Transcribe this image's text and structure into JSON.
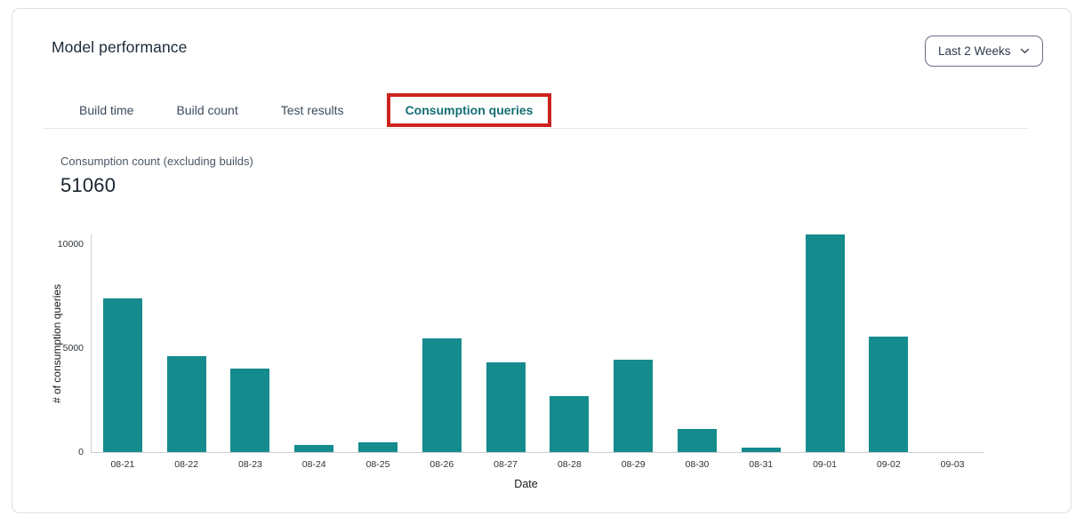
{
  "header": {
    "title": "Model performance",
    "date_range_selector": {
      "label": "Last 2 Weeks"
    }
  },
  "icons": {
    "date_range_chevron": "chevron-down"
  },
  "tabs": [
    {
      "label": "Build time",
      "active": false
    },
    {
      "label": "Build count",
      "active": false
    },
    {
      "label": "Test results",
      "active": false
    },
    {
      "label": "Consumption queries",
      "active": true,
      "highlighted": true
    }
  ],
  "annotation": {
    "type": "highlight-box",
    "color": "#cc231e",
    "target": "Consumption queries"
  },
  "metric": {
    "label": "Consumption count (excluding builds)",
    "value": "51060"
  },
  "chart_data": {
    "type": "bar",
    "title": "",
    "xlabel": "Date",
    "ylabel": "# of consumption queries",
    "categories": [
      "08-21",
      "08-22",
      "08-23",
      "08-24",
      "08-25",
      "08-26",
      "08-27",
      "08-28",
      "08-29",
      "08-30",
      "08-31",
      "09-01",
      "09-02",
      "09-03"
    ],
    "values": [
      7400,
      4600,
      4000,
      330,
      450,
      5480,
      4330,
      2700,
      4450,
      1130,
      200,
      10450,
      5540,
      0
    ],
    "yticks": [
      0,
      5000,
      10000
    ],
    "ylim": [
      0,
      10810
    ],
    "bar_color": "#158b8e",
    "grid": false,
    "legend": "none"
  },
  "colors": {
    "active_tab": "#146e73",
    "card_border": "#dcdee3"
  }
}
